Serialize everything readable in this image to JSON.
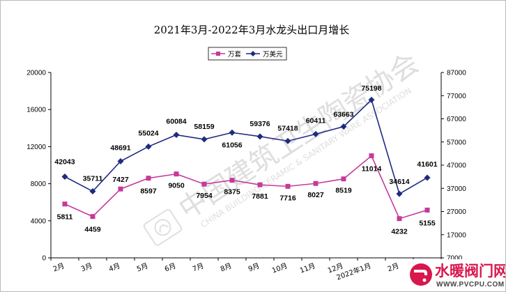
{
  "chart_data": {
    "type": "line",
    "title": "2021年3月-2022年3月水龙头出口月增长",
    "categories": [
      "2月",
      "3月",
      "4月",
      "5月",
      "6月",
      "7月",
      "8月",
      "9月",
      "10月",
      "11月",
      "12月",
      "2022年1月",
      "2月",
      "3月"
    ],
    "series": [
      {
        "name": "万套",
        "axis": "left",
        "color": "#c6399b",
        "marker": "square",
        "values": [
          5811,
          4459,
          7427,
          8597,
          9050,
          7954,
          8375,
          7881,
          7716,
          8027,
          8519,
          11014,
          4232,
          5155
        ]
      },
      {
        "name": "万美元",
        "axis": "right",
        "color": "#1f2a80",
        "marker": "diamond",
        "values": [
          42043,
          35711,
          48691,
          55024,
          60084,
          58159,
          61056,
          59376,
          57418,
          60411,
          63663,
          75198,
          34614,
          41601
        ]
      }
    ],
    "left_axis": {
      "min": 0,
      "max": 20000,
      "ticks": [
        "0",
        "4000",
        "8000",
        "12000",
        "16000",
        "20000"
      ]
    },
    "right_axis": {
      "min": 7000,
      "max": 87000,
      "ticks": [
        "7000",
        "17000",
        "27000",
        "37000",
        "47000",
        "57000",
        "67000",
        "77000",
        "87000"
      ]
    },
    "grid": false,
    "legend_position": "top-center"
  },
  "watermark": {
    "text": "中国建筑卫生陶瓷协会",
    "subtext": "CHINA BUILDING CERAMIC & SANITARY WARE ASSOCIATION"
  },
  "logo": {
    "title": "水暖阀门网",
    "url": "WWW.PVCPU.COM"
  }
}
